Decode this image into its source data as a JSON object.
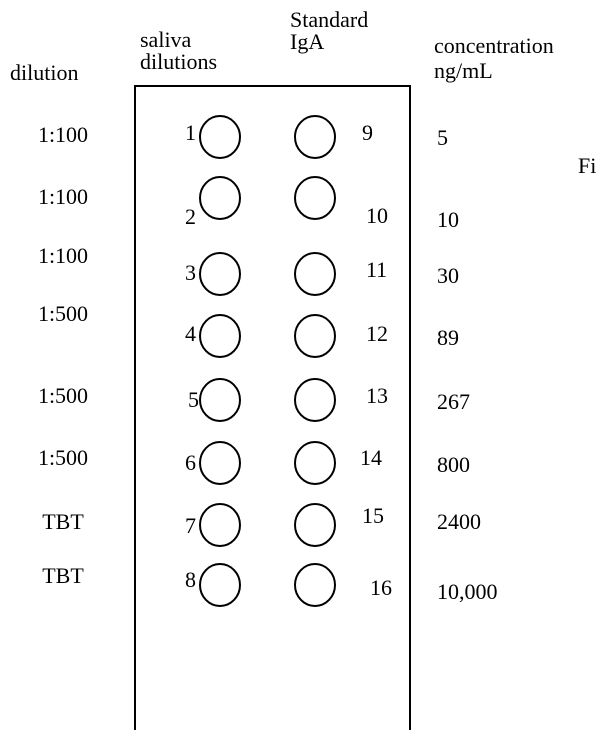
{
  "headers": {
    "dilution": "dilution",
    "saliva": [
      "saliva",
      "dilutions"
    ],
    "standard": [
      "Standard",
      "IgA"
    ],
    "concentration": [
      "concentration",
      "ng/mL"
    ]
  },
  "side_text": "Fi",
  "rows": [
    {
      "dilution": "1:100",
      "saliva_well": "1",
      "standard_well": "9",
      "concentration": "5"
    },
    {
      "dilution": "1:100",
      "saliva_well": "2",
      "standard_well": "10",
      "concentration": "10"
    },
    {
      "dilution": "1:100",
      "saliva_well": "3",
      "standard_well": "11",
      "concentration": "30"
    },
    {
      "dilution": "1:500",
      "saliva_well": "4",
      "standard_well": "12",
      "concentration": "89"
    },
    {
      "dilution": "1:500",
      "saliva_well": "5",
      "standard_well": "13",
      "concentration": "267"
    },
    {
      "dilution": "1:500",
      "saliva_well": "6",
      "standard_well": "14",
      "concentration": "800"
    },
    {
      "dilution": "TBT",
      "saliva_well": "7",
      "standard_well": "15",
      "concentration": "2400"
    },
    {
      "dilution": "TBT",
      "saliva_well": "8",
      "standard_well": "16",
      "concentration": "10,000"
    }
  ]
}
